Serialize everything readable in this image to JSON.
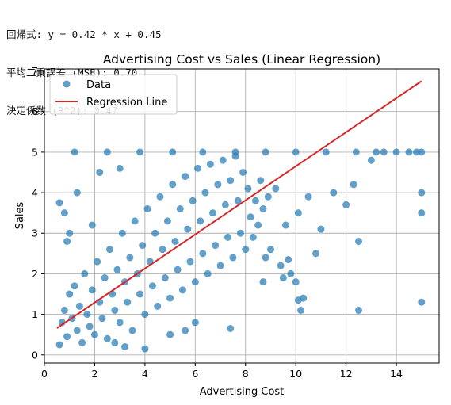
{
  "stats": {
    "line1": "回帰式: y = 0.42 * x + 0.45",
    "line2": "平均二乗誤差 (MSE): 0.70",
    "line3": "決定係数 (R^2): 0.47"
  },
  "colors": {
    "scatter": "#1f77b4",
    "line": "#d62728",
    "grid": "#b0b0b0"
  },
  "chart_data": {
    "type": "scatter",
    "title": "Advertising Cost vs Sales (Linear Regression)",
    "xlabel": "Advertising Cost",
    "ylabel": "Sales",
    "xlim": [
      0.0,
      15.7
    ],
    "ylim": [
      -0.2,
      7.05
    ],
    "xticks": [
      0,
      2,
      4,
      6,
      8,
      10,
      12,
      14
    ],
    "yticks": [
      0,
      1,
      2,
      3,
      4,
      5,
      6,
      7
    ],
    "grid": true,
    "legend": {
      "position": "upper-left",
      "entries": [
        "Data",
        "Regression Line"
      ]
    },
    "series": [
      {
        "name": "Data",
        "kind": "scatter",
        "alpha": 0.7,
        "points": [
          [
            0.6,
            0.25
          ],
          [
            0.7,
            0.8
          ],
          [
            0.8,
            1.1
          ],
          [
            0.9,
            0.45
          ],
          [
            1.0,
            1.5
          ],
          [
            1.1,
            0.9
          ],
          [
            1.2,
            1.7
          ],
          [
            1.3,
            0.6
          ],
          [
            1.4,
            1.2
          ],
          [
            1.5,
            0.3
          ],
          [
            1.6,
            2.0
          ],
          [
            1.7,
            1.0
          ],
          [
            1.8,
            0.7
          ],
          [
            1.9,
            1.6
          ],
          [
            2.0,
            0.5
          ],
          [
            2.1,
            2.3
          ],
          [
            2.2,
            1.3
          ],
          [
            2.3,
            0.9
          ],
          [
            2.4,
            1.9
          ],
          [
            2.5,
            0.4
          ],
          [
            2.6,
            2.6
          ],
          [
            2.7,
            1.5
          ],
          [
            2.8,
            1.1
          ],
          [
            2.9,
            2.1
          ],
          [
            3.0,
            0.8
          ],
          [
            3.1,
            3.0
          ],
          [
            3.2,
            1.8
          ],
          [
            3.3,
            1.3
          ],
          [
            3.4,
            2.4
          ],
          [
            3.5,
            0.6
          ],
          [
            3.6,
            3.3
          ],
          [
            3.7,
            2.0
          ],
          [
            3.8,
            1.5
          ],
          [
            3.9,
            2.7
          ],
          [
            4.0,
            1.0
          ],
          [
            4.1,
            3.6
          ],
          [
            4.2,
            2.3
          ],
          [
            4.3,
            1.7
          ],
          [
            4.4,
            3.0
          ],
          [
            4.5,
            1.2
          ],
          [
            4.6,
            3.9
          ],
          [
            4.7,
            2.6
          ],
          [
            4.8,
            1.9
          ],
          [
            4.9,
            3.3
          ],
          [
            5.0,
            1.4
          ],
          [
            5.1,
            4.2
          ],
          [
            5.2,
            2.8
          ],
          [
            5.3,
            2.1
          ],
          [
            5.4,
            3.6
          ],
          [
            5.5,
            1.6
          ],
          [
            5.6,
            4.4
          ],
          [
            5.7,
            3.1
          ],
          [
            5.8,
            2.3
          ],
          [
            5.9,
            3.8
          ],
          [
            6.0,
            1.8
          ],
          [
            6.1,
            4.6
          ],
          [
            6.2,
            3.3
          ],
          [
            6.3,
            2.5
          ],
          [
            6.4,
            4.0
          ],
          [
            6.5,
            2.0
          ],
          [
            6.6,
            4.7
          ],
          [
            6.7,
            3.5
          ],
          [
            6.8,
            2.7
          ],
          [
            6.9,
            4.2
          ],
          [
            7.0,
            2.2
          ],
          [
            7.1,
            4.8
          ],
          [
            7.2,
            3.7
          ],
          [
            7.3,
            2.9
          ],
          [
            7.4,
            4.3
          ],
          [
            7.5,
            2.4
          ],
          [
            7.6,
            4.9
          ],
          [
            7.7,
            3.8
          ],
          [
            7.8,
            3.0
          ],
          [
            7.9,
            4.5
          ],
          [
            8.0,
            2.6
          ],
          [
            8.1,
            4.1
          ],
          [
            8.2,
            3.4
          ],
          [
            8.3,
            2.9
          ],
          [
            8.4,
            3.8
          ],
          [
            8.5,
            3.2
          ],
          [
            8.6,
            4.3
          ],
          [
            8.7,
            3.6
          ],
          [
            8.8,
            2.4
          ],
          [
            8.9,
            3.9
          ],
          [
            9.0,
            2.6
          ],
          [
            9.2,
            4.1
          ],
          [
            9.4,
            2.2
          ],
          [
            9.6,
            3.2
          ],
          [
            9.8,
            2.0
          ],
          [
            10.0,
            1.8
          ],
          [
            10.1,
            3.5
          ],
          [
            10.3,
            1.4
          ],
          [
            10.5,
            3.9
          ],
          [
            10.8,
            2.5
          ],
          [
            11.0,
            3.1
          ],
          [
            11.5,
            4.0
          ],
          [
            12.0,
            3.7
          ],
          [
            12.3,
            4.2
          ],
          [
            12.5,
            2.8
          ],
          [
            12.5,
            1.1
          ],
          [
            13.0,
            4.8
          ],
          [
            13.5,
            5.0
          ],
          [
            14.0,
            5.0
          ],
          [
            14.5,
            5.0
          ],
          [
            15.0,
            5.0
          ],
          [
            15.0,
            4.0
          ],
          [
            15.0,
            3.5
          ],
          [
            15.0,
            1.3
          ],
          [
            10.1,
            1.35
          ],
          [
            10.2,
            1.1
          ],
          [
            1.2,
            5.0
          ],
          [
            2.5,
            5.0
          ],
          [
            3.8,
            5.0
          ],
          [
            5.1,
            5.0
          ],
          [
            6.3,
            5.0
          ],
          [
            7.6,
            5.0
          ],
          [
            8.8,
            5.0
          ],
          [
            10.0,
            5.0
          ],
          [
            11.2,
            5.0
          ],
          [
            12.4,
            5.0
          ],
          [
            0.8,
            3.5
          ],
          [
            0.6,
            3.75
          ],
          [
            1.3,
            4.0
          ],
          [
            2.2,
            4.5
          ],
          [
            1.9,
            3.2
          ],
          [
            3.0,
            4.6
          ],
          [
            0.9,
            2.8
          ],
          [
            1.0,
            3.0
          ],
          [
            7.4,
            0.65
          ],
          [
            5.0,
            0.5
          ],
          [
            4.0,
            0.15
          ],
          [
            3.2,
            0.2
          ],
          [
            2.8,
            0.3
          ],
          [
            6.0,
            0.8
          ],
          [
            5.6,
            0.6
          ],
          [
            9.5,
            1.9
          ],
          [
            9.7,
            2.35
          ],
          [
            8.7,
            1.8
          ],
          [
            13.2,
            5.0
          ],
          [
            14.8,
            5.0
          ]
        ]
      },
      {
        "name": "Regression Line",
        "kind": "line",
        "slope": 0.42,
        "intercept": 0.45,
        "x_range": [
          0.5,
          15.0
        ]
      }
    ]
  }
}
